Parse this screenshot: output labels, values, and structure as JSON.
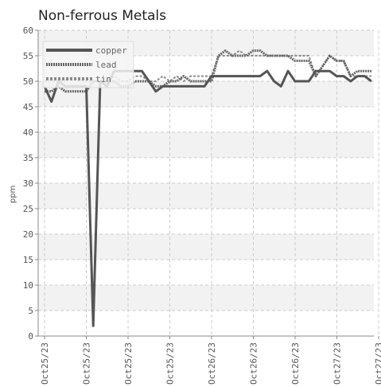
{
  "chart_data": {
    "type": "line",
    "title": "Non-ferrous Metals",
    "ylabel": "ppm",
    "xlabel": "",
    "ylim": [
      0,
      60
    ],
    "yticks": [
      0,
      5,
      10,
      15,
      20,
      25,
      30,
      35,
      40,
      45,
      50,
      55,
      60
    ],
    "xticks": [
      "Oct25/23",
      "Oct25/23",
      "Oct25/23",
      "Oct25/23",
      "Oct26/23",
      "Oct26/23",
      "Oct26/23",
      "Oct27/23",
      "Oct27/23"
    ],
    "grid": true,
    "legend": "top-left",
    "colors": {
      "copper": "#555555",
      "lead": "#666666",
      "tin": "#8a8a8a",
      "band": "#f2f2f2",
      "grid": "#cccccc",
      "axis": "#888888"
    },
    "series": [
      {
        "name": "copper",
        "values": [
          49,
          46,
          50,
          49,
          49,
          49,
          49,
          2,
          50,
          49,
          52,
          52,
          52,
          52,
          52,
          50,
          48,
          49,
          49,
          49,
          49,
          49,
          49,
          49,
          51,
          51,
          51,
          51,
          51,
          51,
          51,
          51,
          52,
          50,
          49,
          52,
          50,
          50,
          50,
          52,
          52,
          52,
          51,
          51,
          50,
          51,
          51,
          50
        ]
      },
      {
        "name": "lead",
        "values": [
          48,
          48,
          49,
          48,
          48,
          48,
          48,
          50,
          50,
          50,
          50,
          49,
          49,
          50,
          50,
          50,
          49,
          49,
          50,
          50,
          51,
          50,
          50,
          50,
          50,
          55,
          56,
          55,
          55,
          55,
          56,
          56,
          55,
          55,
          55,
          55,
          54,
          54,
          54,
          51,
          53,
          55,
          54,
          54,
          51,
          52,
          52,
          52
        ]
      },
      {
        "name": "tin",
        "values": [
          50,
          50,
          50,
          50,
          51,
          50,
          50,
          50,
          50,
          50,
          51,
          50,
          50,
          51,
          51,
          50,
          50,
          51,
          50,
          51,
          50,
          51,
          51,
          51,
          51,
          55,
          55,
          55,
          56,
          55,
          55,
          55,
          55,
          55,
          55,
          55,
          55,
          55,
          55,
          51,
          53,
          55,
          54,
          54,
          51,
          51,
          51,
          51
        ]
      }
    ]
  }
}
